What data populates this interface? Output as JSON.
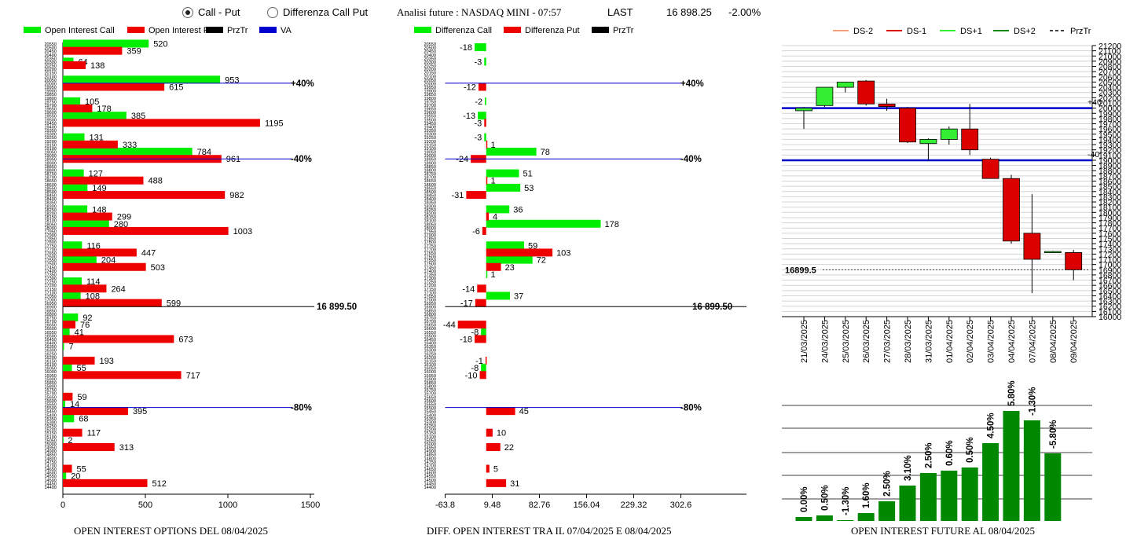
{
  "header": {
    "radio_call_put": "Call - Put",
    "radio_diff": "Differenza Call Put",
    "title": "Analisi future : NASDAQ MINI - 07:57",
    "last_label": "LAST",
    "last_value": "16 898.25",
    "change": "-2.00%"
  },
  "footers": {
    "oi": "OPEN INTEREST OPTIONS DEL 08/04/2025",
    "diff": "DIFF. OPEN INTEREST TRA IL 07/04/2025 E 08/04/2025",
    "future": "OPEN INTEREST FUTURE AL 08/04/2025"
  },
  "colors": {
    "call": "#00ee00",
    "put": "#ee0000",
    "prztr": "#000000",
    "va": "#0000cc",
    "ds_minus2": "#f4a07a",
    "ds_minus1": "#dd0000",
    "ds_plus1": "#33ee33",
    "ds_plus2": "#008800",
    "future_bar": "#008800"
  },
  "chart_data": [
    {
      "type": "bar",
      "orientation": "horizontal",
      "legend": [
        "Open Interest Call",
        "Open Interest Put",
        "PrzTr",
        "VA"
      ],
      "strike_labels": [
        "20550",
        "20500",
        "20450",
        "20400",
        "20350",
        "20300",
        "20250",
        "20200",
        "20150",
        "20100",
        "20050",
        "20000",
        "19950",
        "19900",
        "19850",
        "19800",
        "19750",
        "19700",
        "19650",
        "19600",
        "19550",
        "19500",
        "19450",
        "19400",
        "19350",
        "19300",
        "19250",
        "19200",
        "19150",
        "19100",
        "19050",
        "19000",
        "18950",
        "18900",
        "18850",
        "18800",
        "18750",
        "18700",
        "18650",
        "18600",
        "18550",
        "18500",
        "18450",
        "18400",
        "18350",
        "18300",
        "18250",
        "18200",
        "18150",
        "18100",
        "18050",
        "18000",
        "17950",
        "17900",
        "17850",
        "17800",
        "17750",
        "17700",
        "17650",
        "17600",
        "17550",
        "17500",
        "17450",
        "17400",
        "17350",
        "17300",
        "17250",
        "17200",
        "17150",
        "17100",
        "17050",
        "17000",
        "16950",
        "16900",
        "16850",
        "16800",
        "16750",
        "16700",
        "16650",
        "16600",
        "16550",
        "16500",
        "16450",
        "16400",
        "16350",
        "16300",
        "16250",
        "16200",
        "16150",
        "16100",
        "16050",
        "16000",
        "15950",
        "15900",
        "15850",
        "15800",
        "15750",
        "15700",
        "15650",
        "15600",
        "15550",
        "15500",
        "15450",
        "15400",
        "15350",
        "15300",
        "15250",
        "15200",
        "15150",
        "15100",
        "15050",
        "15000",
        "14950",
        "14900",
        "14850",
        "14800",
        "14750",
        "14700",
        "14650",
        "14600",
        "14550",
        "14500",
        "14450",
        "14400"
      ],
      "call_series": [
        [
          "20550",
          520
        ],
        [
          "20300",
          64
        ],
        [
          "20050",
          953
        ],
        [
          "19750",
          105
        ],
        [
          "19550",
          385
        ],
        [
          "19250",
          131
        ],
        [
          "19050",
          784
        ],
        [
          "18750",
          127
        ],
        [
          "18550",
          149
        ],
        [
          "18250",
          148
        ],
        [
          "18050",
          280
        ],
        [
          "17750",
          116
        ],
        [
          "17550",
          204
        ],
        [
          "17250",
          114
        ],
        [
          "17050",
          108
        ],
        [
          "16750",
          92
        ],
        [
          "16550",
          41
        ],
        [
          "16350",
          7
        ],
        [
          "16050",
          55
        ],
        [
          "15550",
          14
        ],
        [
          "15350",
          68
        ],
        [
          "15050",
          2
        ],
        [
          "14550",
          20
        ]
      ],
      "put_series": [
        [
          "20450",
          359
        ],
        [
          "20250",
          138
        ],
        [
          "19950",
          615
        ],
        [
          "19650",
          178
        ],
        [
          "19450",
          1195
        ],
        [
          "19150",
          333
        ],
        [
          "18950",
          961
        ],
        [
          "18650",
          488
        ],
        [
          "18450",
          982
        ],
        [
          "18150",
          299
        ],
        [
          "17950",
          1003
        ],
        [
          "17650",
          447
        ],
        [
          "17450",
          503
        ],
        [
          "17150",
          264
        ],
        [
          "16950",
          599
        ],
        [
          "16650",
          76
        ],
        [
          "16450",
          673
        ],
        [
          "16150",
          193
        ],
        [
          "15950",
          717
        ],
        [
          "15650",
          59
        ],
        [
          "15450",
          395
        ],
        [
          "15150",
          117
        ],
        [
          "14950",
          313
        ],
        [
          "14650",
          55
        ],
        [
          "14450",
          512
        ]
      ],
      "levels": [
        {
          "label": "+40%",
          "strike": "20000"
        },
        {
          "label": "-40%",
          "strike": "18950"
        },
        {
          "label": "16 899.50",
          "strike": "16900"
        },
        {
          "label": "-80%",
          "strike": "15500"
        }
      ],
      "xticks": [
        0,
        500,
        1000,
        1500
      ],
      "xlim": [
        0,
        1500
      ]
    },
    {
      "type": "bar",
      "orientation": "horizontal",
      "legend": [
        "Differenza Call",
        "Differenza Put",
        "PrzTr"
      ],
      "call_series": [
        [
          "20500",
          -18
        ],
        [
          "20300",
          -3
        ],
        [
          "19750",
          -2
        ],
        [
          "19550",
          -13
        ],
        [
          "19250",
          -3
        ],
        [
          "19050",
          78
        ],
        [
          "18750",
          51
        ],
        [
          "18550",
          53
        ],
        [
          "18250",
          36
        ],
        [
          "18050",
          178
        ],
        [
          "17750",
          59
        ],
        [
          "17550",
          72
        ],
        [
          "17350",
          1
        ],
        [
          "17050",
          37
        ],
        [
          "16550",
          -8
        ],
        [
          "16050",
          -8
        ]
      ],
      "put_series": [
        [
          "19950",
          -12
        ],
        [
          "19450",
          -3
        ],
        [
          "19150",
          1
        ],
        [
          "18950",
          -24
        ],
        [
          "18650",
          1
        ],
        [
          "18450",
          -31
        ],
        [
          "18150",
          4
        ],
        [
          "17950",
          -6
        ],
        [
          "17650",
          103
        ],
        [
          "17450",
          23
        ],
        [
          "17150",
          -14
        ],
        [
          "16950",
          -17
        ],
        [
          "16650",
          -44
        ],
        [
          "16450",
          -18
        ],
        [
          "16150",
          -1
        ],
        [
          "15950",
          -10
        ],
        [
          "15450",
          45
        ],
        [
          "15150",
          10
        ],
        [
          "14950",
          22
        ],
        [
          "14650",
          5
        ],
        [
          "14450",
          31
        ]
      ],
      "levels": [
        {
          "label": "+40%",
          "strike": "20000"
        },
        {
          "label": "-40%",
          "strike": "18950"
        },
        {
          "label": "16 899.50",
          "strike": "16900"
        },
        {
          "label": "-80%",
          "strike": "15500"
        }
      ],
      "xticks": [
        "-63.8",
        "9.48",
        "82.76",
        "156.04",
        "229.32",
        "302.6"
      ],
      "xlim": [
        -63.8,
        302.6
      ]
    },
    {
      "type": "candlestick",
      "legend": [
        "DS-2",
        "DS-1",
        "DS+1",
        "DS+2",
        "PrzTr"
      ],
      "dates": [
        "21/03/2025",
        "24/03/2025",
        "25/03/2025",
        "26/03/2025",
        "27/03/2025",
        "28/03/2025",
        "31/03/2025",
        "01/04/2025",
        "02/04/2025",
        "03/04/2025",
        "04/04/2025",
        "07/04/2025",
        "08/04/2025",
        "09/04/2025"
      ],
      "ohlc": [
        [
          19950,
          20020,
          19600,
          20000
        ],
        [
          20050,
          20400,
          20020,
          20400
        ],
        [
          20400,
          20500,
          20300,
          20500
        ],
        [
          20520,
          20540,
          20050,
          20080
        ],
        [
          20080,
          20180,
          19950,
          20030
        ],
        [
          20000,
          20020,
          19330,
          19350
        ],
        [
          19320,
          19420,
          19000,
          19400
        ],
        [
          19400,
          19650,
          19300,
          19600
        ],
        [
          19600,
          20080,
          19100,
          19200
        ],
        [
          19020,
          19050,
          18650,
          18650
        ],
        [
          18650,
          18720,
          17400,
          17450
        ],
        [
          17600,
          18350,
          16450,
          17100
        ],
        [
          17240,
          17260,
          17240,
          17250
        ],
        [
          17230,
          17280,
          16700,
          16900
        ]
      ],
      "yticks": [
        21200,
        21100,
        21000,
        20900,
        20800,
        20700,
        20600,
        20500,
        20400,
        20300,
        20200,
        20100,
        20000,
        19900,
        19800,
        19700,
        19600,
        19500,
        19400,
        19300,
        19200,
        19100,
        19000,
        18900,
        18800,
        18700,
        18600,
        18500,
        18400,
        18300,
        18200,
        18100,
        18000,
        17900,
        17800,
        17700,
        17600,
        17500,
        17400,
        17300,
        17200,
        17100,
        17000,
        16900,
        16800,
        16700,
        16600,
        16500,
        16400,
        16300,
        16200,
        16100,
        16000
      ],
      "ylim": [
        16000,
        21200
      ],
      "levels": [
        {
          "label": "+40",
          "value": 20000
        },
        {
          "label": "-40",
          "value": 19000
        }
      ],
      "last_line": {
        "label": "16899.5",
        "value": 16899.5
      }
    },
    {
      "type": "bar",
      "labels": [
        "0.00%",
        "0.50%",
        "-1.30%",
        "1.60%",
        "2.50%",
        "3.10%",
        "2.50%",
        "0.60%",
        "0.50%",
        "4.50%",
        "5.80%",
        "-1.30%",
        "-5.80%"
      ],
      "values": [
        5,
        7,
        1,
        10,
        25,
        45,
        61,
        64,
        68,
        99,
        140,
        128,
        86
      ]
    }
  ]
}
